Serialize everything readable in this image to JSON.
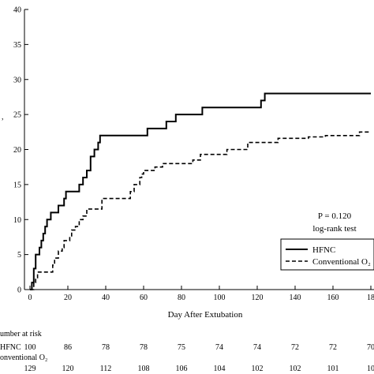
{
  "chart_data": {
    "type": "line",
    "title": "",
    "xlabel": "Day After Extubation",
    "ylabel": "",
    "xlim": [
      0,
      180
    ],
    "ylim": [
      0,
      40
    ],
    "x_ticks": [
      "0",
      "20",
      "40",
      "60",
      "80",
      "100",
      "120",
      "140",
      "160",
      "18"
    ],
    "y_ticks": [
      "0",
      "5",
      "10",
      "15",
      "20",
      "25",
      "30",
      "35",
      "40"
    ],
    "grid": false,
    "legend_position": "bottom-right",
    "annotations": {
      "p_value": "P = 0.120",
      "test": "log-rank test"
    },
    "series": [
      {
        "name": "HFNC",
        "style": "solid",
        "color": "#000000",
        "points": [
          [
            0,
            0
          ],
          [
            1,
            0
          ],
          [
            1,
            1
          ],
          [
            2,
            1
          ],
          [
            2,
            3
          ],
          [
            3,
            3
          ],
          [
            3,
            5
          ],
          [
            5,
            5
          ],
          [
            5,
            6
          ],
          [
            6,
            6
          ],
          [
            6,
            7
          ],
          [
            7,
            7
          ],
          [
            7,
            8
          ],
          [
            8,
            8
          ],
          [
            8,
            9
          ],
          [
            9,
            9
          ],
          [
            9,
            10
          ],
          [
            11,
            10
          ],
          [
            11,
            11
          ],
          [
            15,
            11
          ],
          [
            15,
            12
          ],
          [
            18,
            12
          ],
          [
            18,
            13
          ],
          [
            19,
            13
          ],
          [
            19,
            14
          ],
          [
            26,
            14
          ],
          [
            26,
            15
          ],
          [
            28,
            15
          ],
          [
            28,
            16
          ],
          [
            30,
            16
          ],
          [
            30,
            17
          ],
          [
            32,
            17
          ],
          [
            32,
            19
          ],
          [
            34,
            19
          ],
          [
            34,
            20
          ],
          [
            36,
            20
          ],
          [
            36,
            21
          ],
          [
            37,
            21
          ],
          [
            37,
            22
          ],
          [
            62,
            22
          ],
          [
            62,
            23
          ],
          [
            72,
            23
          ],
          [
            72,
            24
          ],
          [
            77,
            24
          ],
          [
            77,
            25
          ],
          [
            91,
            25
          ],
          [
            91,
            26
          ],
          [
            122,
            26
          ],
          [
            122,
            27
          ],
          [
            124,
            27
          ],
          [
            124,
            28
          ],
          [
            180,
            28
          ]
        ]
      },
      {
        "name": "Conventional O₂",
        "style": "dashed",
        "color": "#000000",
        "points": [
          [
            0,
            0
          ],
          [
            2,
            0
          ],
          [
            2,
            1
          ],
          [
            3,
            1
          ],
          [
            3,
            1.7
          ],
          [
            4,
            1.7
          ],
          [
            4,
            2.5
          ],
          [
            12,
            2.5
          ],
          [
            12,
            3.5
          ],
          [
            13,
            3.5
          ],
          [
            13,
            4.5
          ],
          [
            15,
            4.5
          ],
          [
            15,
            5.5
          ],
          [
            17,
            5.5
          ],
          [
            17,
            6
          ],
          [
            18,
            6
          ],
          [
            18,
            7
          ],
          [
            21,
            7
          ],
          [
            21,
            7.5
          ],
          [
            22,
            7.5
          ],
          [
            22,
            8.5
          ],
          [
            24,
            8.5
          ],
          [
            24,
            9
          ],
          [
            26,
            9
          ],
          [
            26,
            10
          ],
          [
            28,
            10
          ],
          [
            28,
            10.5
          ],
          [
            30,
            10.5
          ],
          [
            30,
            11.5
          ],
          [
            38,
            11.5
          ],
          [
            38,
            13
          ],
          [
            53,
            13
          ],
          [
            53,
            14
          ],
          [
            55,
            14
          ],
          [
            55,
            15
          ],
          [
            58,
            15
          ],
          [
            58,
            16
          ],
          [
            59,
            16
          ],
          [
            59,
            16.5
          ],
          [
            60,
            16.5
          ],
          [
            60,
            17
          ],
          [
            66,
            17
          ],
          [
            66,
            17.5
          ],
          [
            70,
            17.5
          ],
          [
            70,
            18
          ],
          [
            86,
            18
          ],
          [
            86,
            18.5
          ],
          [
            90,
            18.5
          ],
          [
            90,
            19.3
          ],
          [
            104,
            19.3
          ],
          [
            104,
            20
          ],
          [
            115,
            20
          ],
          [
            115,
            21
          ],
          [
            131,
            21
          ],
          [
            131,
            21.6
          ],
          [
            147,
            21.6
          ],
          [
            147,
            21.8
          ],
          [
            156,
            21.8
          ],
          [
            156,
            22
          ],
          [
            174,
            22
          ],
          [
            174,
            22.5
          ],
          [
            180,
            22.5
          ]
        ]
      }
    ],
    "risk_table": {
      "header": "umber at risk",
      "rows": [
        {
          "label": "HFNC",
          "values": [
            "100",
            "86",
            "78",
            "78",
            "75",
            "74",
            "74",
            "72",
            "72",
            "70"
          ]
        },
        {
          "label": "onventional O₂",
          "values": [
            "129",
            "120",
            "112",
            "108",
            "106",
            "104",
            "102",
            "102",
            "101",
            "10"
          ]
        }
      ]
    }
  }
}
